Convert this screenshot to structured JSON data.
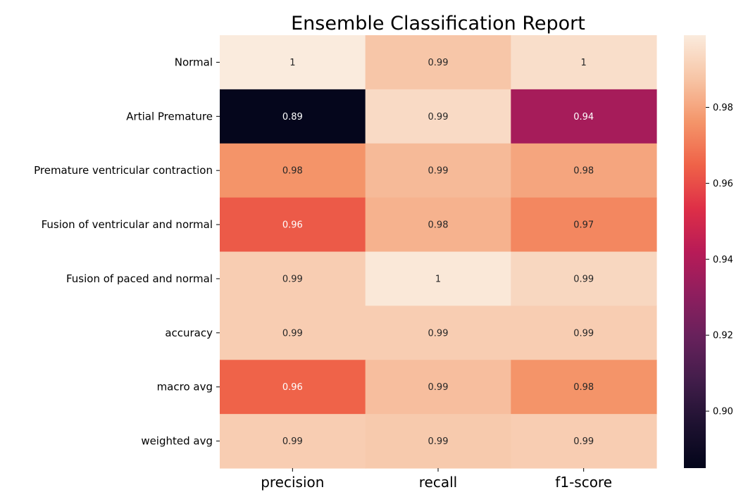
{
  "chart_data": {
    "type": "heatmap",
    "title": "Ensemble Classification Report",
    "columns": [
      "precision",
      "recall",
      "f1-score"
    ],
    "rows": [
      "Normal",
      "Artial Premature",
      "Premature ventricular contraction",
      "Fusion of ventricular and normal",
      "Fusion of paced and normal",
      "accuracy",
      "macro avg",
      "weighted avg"
    ],
    "values": [
      [
        0.999,
        0.988,
        0.995
      ],
      [
        0.886,
        0.994,
        0.937
      ],
      [
        0.976,
        0.985,
        0.98
      ],
      [
        0.963,
        0.983,
        0.973
      ],
      [
        0.99,
        0.998,
        0.993
      ],
      [
        0.99,
        0.99,
        0.99
      ],
      [
        0.965,
        0.986,
        0.976
      ],
      [
        0.99,
        0.989,
        0.99
      ]
    ],
    "annotations": [
      [
        "1",
        "0.99",
        "1"
      ],
      [
        "0.89",
        "0.99",
        "0.94"
      ],
      [
        "0.98",
        "0.99",
        "0.98"
      ],
      [
        "0.96",
        "0.98",
        "0.97"
      ],
      [
        "0.99",
        "1",
        "0.99"
      ],
      [
        "0.99",
        "0.99",
        "0.99"
      ],
      [
        "0.96",
        "0.99",
        "0.98"
      ],
      [
        "0.99",
        "0.99",
        "0.99"
      ]
    ],
    "colormap": "rocket",
    "colorbar": {
      "range": [
        0.885,
        0.999
      ],
      "ticks": [
        0.9,
        0.92,
        0.94,
        0.96,
        0.98
      ],
      "tick_labels": [
        "0.90",
        "0.92",
        "0.94",
        "0.96",
        "0.98"
      ]
    }
  }
}
